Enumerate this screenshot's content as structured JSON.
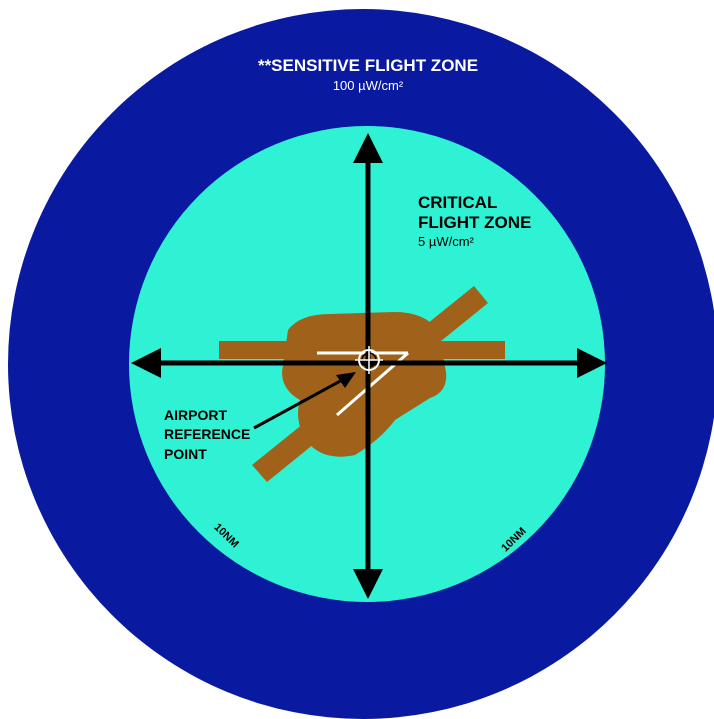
{
  "colors": {
    "sensitive_zone": "#0a1aa0",
    "critical_zone": "#2ff2d4",
    "runway": "#a0621a",
    "axes": "#000000",
    "runway_markings": "#ffffff",
    "sensitive_text": "#ffffff",
    "critical_text": "#000000"
  },
  "sensitive_zone": {
    "title": "**SENSITIVE FLIGHT ZONE",
    "limit": "100 µW/cm²"
  },
  "critical_zone": {
    "title_line1": "CRITICAL",
    "title_line2": "FLIGHT ZONE",
    "limit": "5 µW/cm²"
  },
  "reference_point": {
    "line1": "AIRPORT",
    "line2": "REFERENCE",
    "line3": "POINT",
    "icon": "crosshair-icon"
  },
  "radius_labels": {
    "left": "10NM",
    "right": "10NM"
  }
}
